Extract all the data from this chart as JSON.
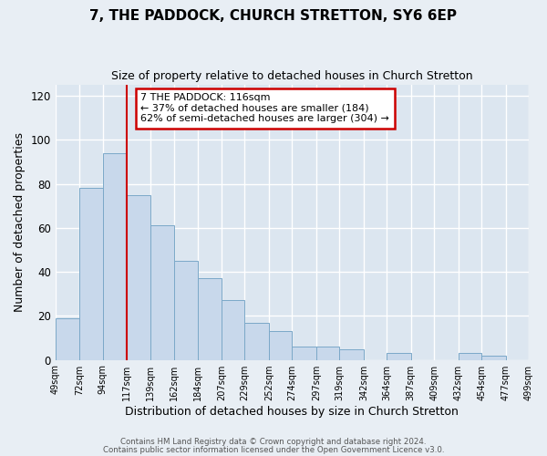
{
  "title": "7, THE PADDOCK, CHURCH STRETTON, SY6 6EP",
  "subtitle": "Size of property relative to detached houses in Church Stretton",
  "xlabel": "Distribution of detached houses by size in Church Stretton",
  "ylabel": "Number of detached properties",
  "bar_color": "#c8d8eb",
  "bar_edge_color": "#7ba8c8",
  "vline_x": 117,
  "vline_color": "#cc0000",
  "bin_edges": [
    49,
    72,
    94,
    117,
    139,
    162,
    184,
    207,
    229,
    252,
    274,
    297,
    319,
    342,
    364,
    387,
    409,
    432,
    454,
    477,
    499
  ],
  "bar_heights": [
    19,
    78,
    94,
    75,
    61,
    45,
    37,
    27,
    17,
    13,
    6,
    6,
    5,
    0,
    3,
    0,
    0,
    3,
    2,
    0
  ],
  "ylim": [
    0,
    125
  ],
  "yticks": [
    0,
    20,
    40,
    60,
    80,
    100,
    120
  ],
  "annotation_title": "7 THE PADDOCK: 116sqm",
  "annotation_line1": "← 37% of detached houses are smaller (184)",
  "annotation_line2": "62% of semi-detached houses are larger (304) →",
  "annotation_box_color": "#ffffff",
  "annotation_box_edge_color": "#cc0000",
  "footer1": "Contains HM Land Registry data © Crown copyright and database right 2024.",
  "footer2": "Contains public sector information licensed under the Open Government Licence v3.0.",
  "background_color": "#e8eef4",
  "plot_bg_color": "#dce6f0",
  "tick_labels": [
    "49sqm",
    "72sqm",
    "94sqm",
    "117sqm",
    "139sqm",
    "162sqm",
    "184sqm",
    "207sqm",
    "229sqm",
    "252sqm",
    "274sqm",
    "297sqm",
    "319sqm",
    "342sqm",
    "364sqm",
    "387sqm",
    "409sqm",
    "432sqm",
    "454sqm",
    "477sqm",
    "499sqm"
  ]
}
